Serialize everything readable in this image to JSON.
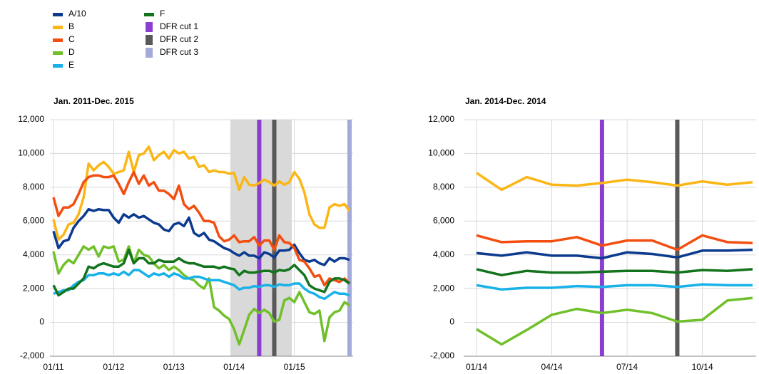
{
  "chart_data": [
    {
      "type": "line",
      "subtitle": "Jan. 2011-Dec. 2015",
      "categories": [
        "01/11",
        null,
        null,
        null,
        null,
        null,
        null,
        null,
        null,
        null,
        null,
        null,
        "01/12",
        null,
        null,
        null,
        null,
        null,
        null,
        null,
        null,
        null,
        null,
        null,
        "01/13",
        null,
        null,
        null,
        null,
        null,
        null,
        null,
        null,
        null,
        null,
        null,
        "01/14",
        null,
        null,
        null,
        null,
        null,
        null,
        null,
        null,
        null,
        null,
        null,
        "01/15",
        null,
        null,
        null,
        null,
        null,
        null,
        null,
        null,
        null,
        null,
        null
      ],
      "series": [
        {
          "name": "A/10",
          "color": "#0b3a8e",
          "values": [
            5400,
            4400,
            4800,
            4900,
            5600,
            6000,
            6300,
            6700,
            6600,
            6700,
            6650,
            6650,
            6200,
            5900,
            6400,
            6200,
            6400,
            6200,
            6300,
            6100,
            5900,
            5800,
            5500,
            5400,
            5800,
            5900,
            5700,
            6200,
            5300,
            5100,
            5300,
            4900,
            4800,
            4600,
            4400,
            4300,
            4100,
            3950,
            4150,
            3950,
            3950,
            3800,
            4150,
            4050,
            3850,
            4250,
            4250,
            4300,
            4600,
            4100,
            3700,
            3600,
            3700,
            3500,
            3400,
            3800,
            3600,
            3800,
            3800,
            3700
          ]
        },
        {
          "name": "B",
          "color": "#fbb616",
          "values": [
            6100,
            4900,
            5200,
            5800,
            5900,
            6400,
            7400,
            9400,
            9000,
            9300,
            9500,
            9200,
            8800,
            8900,
            9000,
            10100,
            8900,
            9900,
            10000,
            10400,
            9600,
            9900,
            10100,
            9700,
            10200,
            10000,
            10100,
            9700,
            9800,
            9200,
            9300,
            8900,
            9000,
            8900,
            8900,
            8800,
            8850,
            7850,
            8600,
            8150,
            8100,
            8250,
            8450,
            8300,
            8100,
            8350,
            8150,
            8300,
            8900,
            8500,
            7700,
            6400,
            5800,
            5600,
            5600,
            6800,
            7000,
            6900,
            7000,
            6600
          ]
        },
        {
          "name": "C",
          "color": "#f34e10",
          "values": [
            7400,
            6300,
            6800,
            6800,
            7000,
            7600,
            8300,
            8600,
            8700,
            8700,
            8600,
            8600,
            8700,
            8200,
            7600,
            8300,
            8900,
            8200,
            8700,
            8100,
            8300,
            7800,
            7800,
            7600,
            7300,
            8100,
            7000,
            6700,
            6900,
            6500,
            6000,
            6000,
            5900,
            5100,
            4800,
            4900,
            5150,
            4750,
            4800,
            4800,
            5050,
            4550,
            4850,
            4850,
            4300,
            5150,
            4750,
            4700,
            4400,
            3700,
            3600,
            3200,
            2700,
            2800,
            2200,
            2600,
            2500,
            2400,
            2600,
            2300
          ]
        },
        {
          "name": "D",
          "color": "#70c02a",
          "values": [
            4200,
            2900,
            3400,
            3700,
            3500,
            4000,
            4500,
            4300,
            4500,
            3900,
            4500,
            4400,
            4500,
            3600,
            3700,
            4500,
            3500,
            4300,
            4000,
            3900,
            3500,
            3200,
            3400,
            3100,
            3300,
            3100,
            2800,
            2600,
            2500,
            2200,
            2000,
            2600,
            900,
            700,
            400,
            200,
            -400,
            -1300,
            -450,
            450,
            800,
            550,
            750,
            550,
            50,
            150,
            1300,
            1450,
            1200,
            1800,
            1200,
            600,
            500,
            700,
            -1100,
            300,
            600,
            700,
            1200,
            1000
          ]
        },
        {
          "name": "E",
          "color": "#19b2e8",
          "values": [
            1700,
            1800,
            1900,
            1900,
            2200,
            2400,
            2500,
            2800,
            2800,
            2900,
            2900,
            2800,
            2900,
            2800,
            3000,
            2800,
            3100,
            3100,
            2900,
            2700,
            2900,
            2800,
            2900,
            2700,
            2900,
            2800,
            2600,
            2600,
            2700,
            2700,
            2600,
            2500,
            2500,
            2500,
            2400,
            2300,
            2200,
            1950,
            2050,
            2050,
            2150,
            2100,
            2200,
            2200,
            2100,
            2250,
            2200,
            2200,
            2300,
            2300,
            2000,
            1800,
            1700,
            1500,
            1400,
            1600,
            1800,
            1700,
            1700,
            1600
          ]
        },
        {
          "name": "F",
          "color": "#13741d",
          "values": [
            2200,
            1600,
            1800,
            2000,
            2000,
            2300,
            2600,
            3300,
            3200,
            3400,
            3500,
            3400,
            3300,
            3300,
            3500,
            4300,
            3500,
            3800,
            3800,
            3500,
            3500,
            3700,
            3600,
            3600,
            3600,
            3800,
            3600,
            3500,
            3500,
            3400,
            3300,
            3300,
            3300,
            3200,
            3300,
            3200,
            3150,
            2800,
            3050,
            2950,
            2950,
            3000,
            3050,
            3050,
            2950,
            3100,
            3050,
            3150,
            3400,
            3100,
            2800,
            2200,
            2000,
            1900,
            1800,
            2400,
            2600,
            2600,
            2500,
            2300
          ]
        }
      ],
      "events": [
        {
          "name": "DFR cut 1",
          "color": "#8b3fd0",
          "index": 41
        },
        {
          "name": "DFR cut 2",
          "color": "#595959",
          "index": 44
        },
        {
          "name": "DFR cut 3",
          "color": "#a3a9d8",
          "index": 59
        }
      ],
      "ylim": [
        -2000,
        12000
      ],
      "yticks": [
        {
          "value": -2000,
          "label": "-2,000"
        },
        0,
        {
          "value": 2000,
          "label": "2,000"
        },
        {
          "value": 4000,
          "label": "4,000"
        },
        {
          "value": 6000,
          "label": "6,000"
        },
        {
          "value": 8000,
          "label": "8,000"
        },
        {
          "value": 10000,
          "label": "10,000"
        },
        {
          "value": 12000,
          "label": "12,000"
        }
      ],
      "grid": true
    },
    {
      "type": "line",
      "subtitle": "Jan. 2014-Dec. 2014",
      "categories": [
        "01/14",
        null,
        null,
        "04/14",
        null,
        null,
        "07/14",
        null,
        null,
        "10/14",
        null,
        null
      ],
      "series": [
        {
          "values": [
            4100,
            3950,
            4150,
            3950,
            3950,
            3800,
            4150,
            4050,
            3850,
            4250,
            4250,
            4300
          ]
        },
        {
          "values": [
            8850,
            7850,
            8600,
            8150,
            8100,
            8250,
            8450,
            8300,
            8100,
            8350,
            8150,
            8300
          ]
        },
        {
          "values": [
            5150,
            4750,
            4800,
            4800,
            5050,
            4550,
            4850,
            4850,
            4300,
            5150,
            4750,
            4700
          ]
        },
        {
          "values": [
            -400,
            -1300,
            -450,
            450,
            800,
            550,
            750,
            550,
            50,
            150,
            1300,
            1450
          ]
        },
        {
          "values": [
            2200,
            1950,
            2050,
            2050,
            2150,
            2100,
            2200,
            2200,
            2100,
            2250,
            2200,
            2200
          ]
        },
        {
          "values": [
            3150,
            2800,
            3050,
            2950,
            2950,
            3000,
            3050,
            3050,
            2950,
            3100,
            3050,
            3150
          ]
        }
      ],
      "events": [
        {
          "index": 5
        },
        {
          "index": 8
        }
      ],
      "ylim": [
        -2000,
        12000
      ],
      "yticks": [
        {
          "value": -2000,
          "label": "-2,000"
        },
        0,
        {
          "value": 2000,
          "label": "2,000"
        },
        {
          "value": 4000,
          "label": "4,000"
        },
        {
          "value": 6000,
          "label": "6,000"
        },
        {
          "value": 8000,
          "label": "8,000"
        },
        {
          "value": 10000,
          "label": "10,000"
        },
        {
          "value": 12000,
          "label": "12,000"
        }
      ],
      "grid": true
    }
  ]
}
